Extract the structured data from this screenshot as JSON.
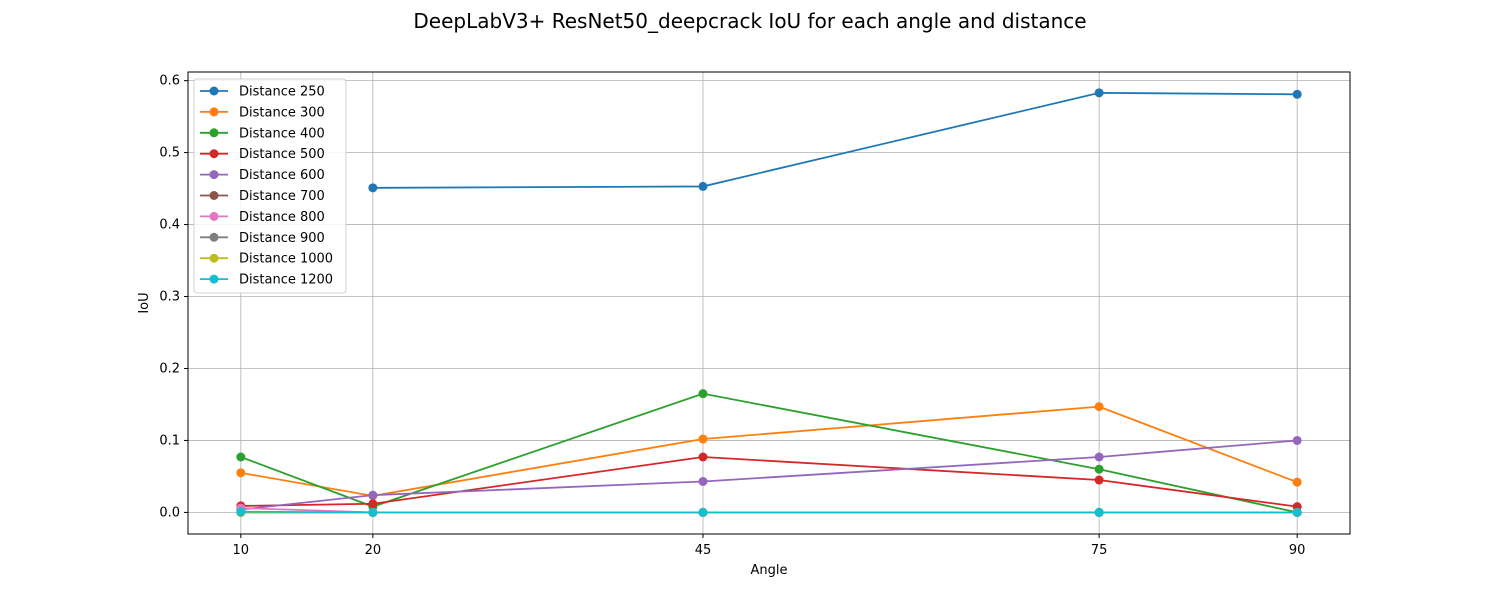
{
  "chart_data": {
    "type": "line",
    "title": "DeepLabV3+ ResNet50_deepcrack IoU for each angle and distance",
    "xlabel": "Angle",
    "ylabel": "IoU",
    "x": [
      10,
      20,
      45,
      75,
      90
    ],
    "x_ticks": [
      "10",
      "20",
      "45",
      "75",
      "90"
    ],
    "y_ticks": [
      "0.0",
      "0.1",
      "0.2",
      "0.3",
      "0.4",
      "0.5",
      "0.6"
    ],
    "xlim": [
      6,
      94
    ],
    "ylim": [
      -0.03,
      0.612
    ],
    "grid": true,
    "legend_position": "top-left",
    "series": [
      {
        "name": "Distance 250",
        "color": "#1f77b4",
        "values": [
          null,
          0.451,
          0.453,
          0.583,
          0.581
        ]
      },
      {
        "name": "Distance 300",
        "color": "#ff7f0e",
        "values": [
          0.055,
          0.023,
          0.102,
          0.147,
          0.042
        ]
      },
      {
        "name": "Distance 400",
        "color": "#2ca02c",
        "values": [
          0.077,
          0.008,
          0.165,
          0.06,
          0.0
        ]
      },
      {
        "name": "Distance 500",
        "color": "#d62728",
        "values": [
          0.009,
          0.012,
          0.077,
          0.045,
          0.008
        ]
      },
      {
        "name": "Distance 600",
        "color": "#9467bd",
        "values": [
          0.004,
          0.024,
          0.043,
          0.077,
          0.1
        ]
      },
      {
        "name": "Distance 700",
        "color": "#8c564b",
        "values": [
          0.0,
          0.0,
          0.0,
          0.0,
          0.0
        ]
      },
      {
        "name": "Distance 800",
        "color": "#e377c2",
        "values": [
          0.006,
          0.0,
          0.0,
          0.0,
          0.0
        ]
      },
      {
        "name": "Distance 900",
        "color": "#7f7f7f",
        "values": [
          0.0,
          0.0,
          0.0,
          0.0,
          0.0
        ]
      },
      {
        "name": "Distance 1000",
        "color": "#bcbd22",
        "values": [
          0.0,
          0.0,
          0.0,
          0.0,
          0.0
        ]
      },
      {
        "name": "Distance 1200",
        "color": "#17becf",
        "values": [
          0.001,
          0.0,
          0.0,
          0.0,
          0.0
        ]
      }
    ]
  }
}
